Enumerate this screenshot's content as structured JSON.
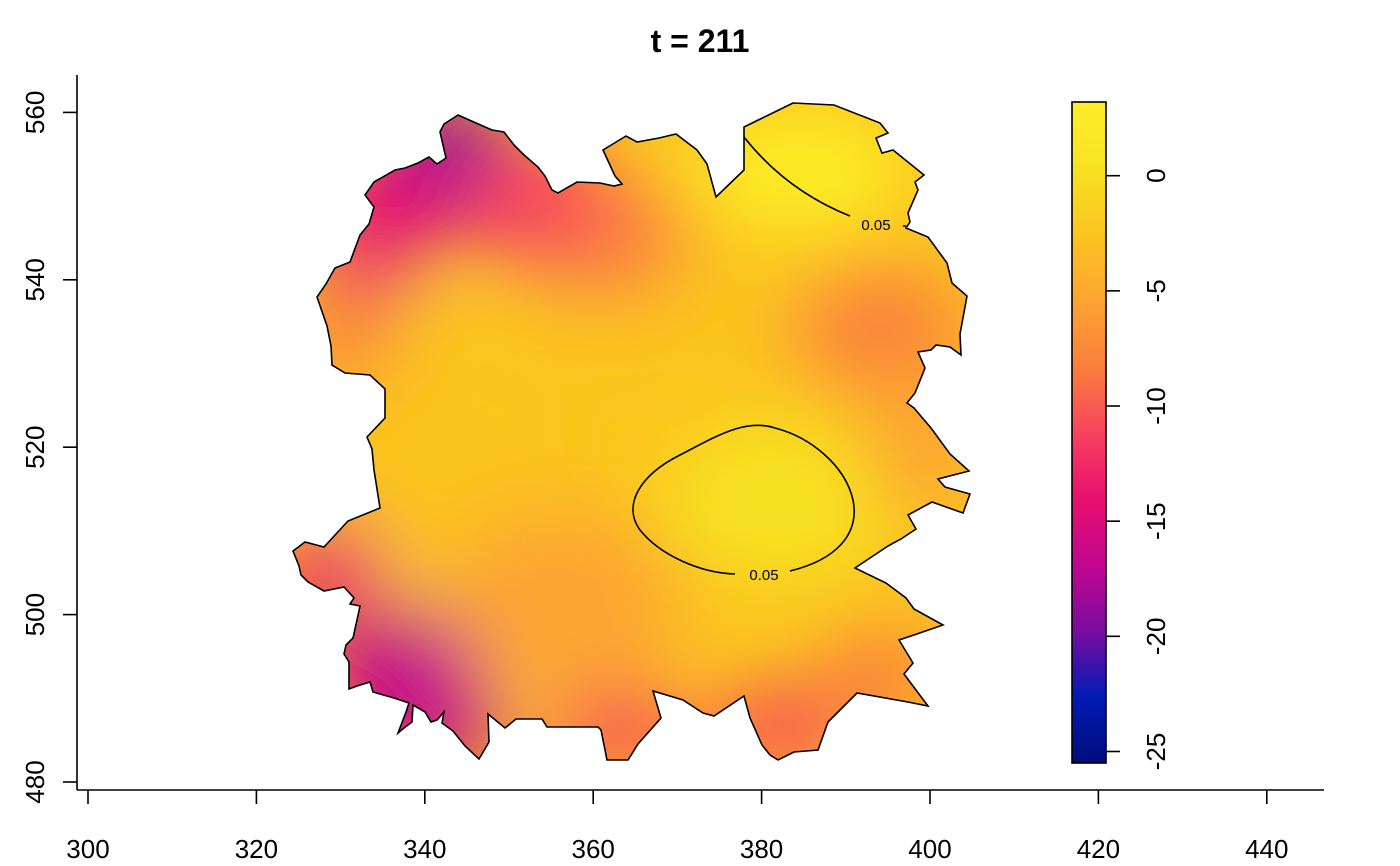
{
  "chart_data": {
    "type": "heatmap",
    "title": "t = 211",
    "xlim": [
      300,
      445
    ],
    "ylim": [
      480,
      564
    ],
    "x_ticks": [
      "300",
      "320",
      "340",
      "360",
      "380",
      "400",
      "420",
      "440"
    ],
    "y_ticks": [
      "480",
      "500",
      "520",
      "540",
      "560"
    ],
    "colorbar": {
      "range": [
        -25.5,
        3.2
      ],
      "ticks": [
        "-25",
        "-20",
        "-15",
        "-10",
        "-5",
        "0"
      ],
      "palette": [
        "#0d0887",
        "#6a00a8",
        "#b12a90",
        "#e16462",
        "#fca636",
        "#f0f921"
      ],
      "colors_hex": [
        "#000c7d",
        "#001bb5",
        "#7a0c9e",
        "#c2058f",
        "#e8116e",
        "#f7435e",
        "#fb7f3c",
        "#fca532",
        "#fbc41f",
        "#f7e224",
        "#fdee28"
      ]
    },
    "contours": [
      {
        "level": 0.05,
        "label": "0.05"
      },
      {
        "level": 0.05,
        "label": "0.05"
      }
    ],
    "grid": false
  }
}
